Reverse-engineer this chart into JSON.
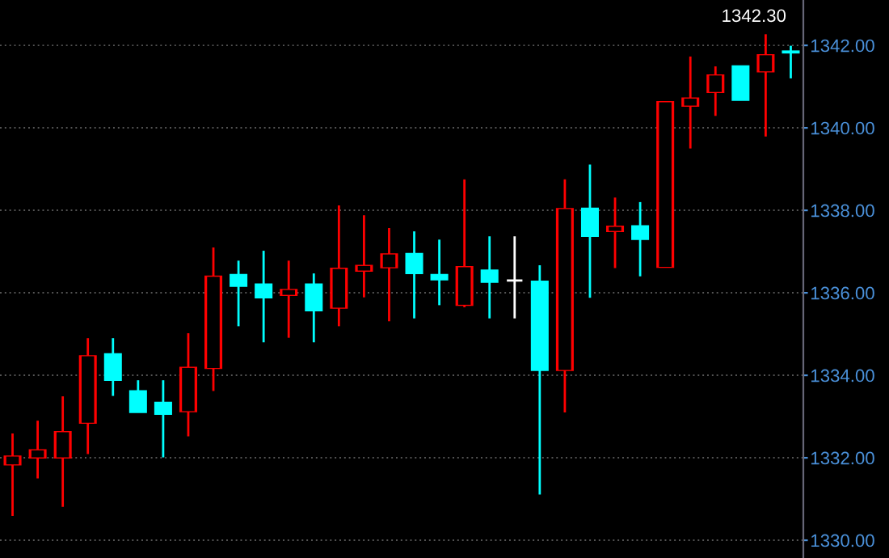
{
  "chart_data": {
    "type": "candlestick",
    "categories": [
      null,
      null,
      null,
      null,
      null,
      null,
      null,
      null,
      null,
      null,
      null,
      null,
      null,
      null,
      null,
      null,
      null,
      null,
      null,
      null,
      null,
      null,
      null,
      null,
      null,
      null,
      null,
      null,
      null,
      null,
      null,
      null
    ],
    "ohlc": [
      [
        1331.84,
        1332.59,
        1330.59,
        1332.03
      ],
      [
        1332.01,
        1332.9,
        1331.5,
        1332.18
      ],
      [
        1332.01,
        1333.49,
        1330.81,
        1332.62
      ],
      [
        1332.85,
        1334.9,
        1332.09,
        1334.46
      ],
      [
        1334.51,
        1334.9,
        1333.5,
        1333.89
      ],
      [
        1333.61,
        1333.88,
        1333.11,
        1333.11
      ],
      [
        1333.33,
        1333.88,
        1332.01,
        1333.07
      ],
      [
        1333.13,
        1335.02,
        1332.52,
        1334.18
      ],
      [
        1334.18,
        1337.1,
        1333.62,
        1336.39
      ],
      [
        1336.43,
        1336.78,
        1335.19,
        1336.17
      ],
      [
        1336.2,
        1337.02,
        1334.8,
        1335.89
      ],
      [
        1335.95,
        1336.78,
        1334.91,
        1336.07
      ],
      [
        1336.2,
        1336.47,
        1334.8,
        1335.58
      ],
      [
        1335.64,
        1338.12,
        1335.19,
        1336.58
      ],
      [
        1336.54,
        1337.88,
        1335.89,
        1336.65
      ],
      [
        1336.62,
        1337.57,
        1335.31,
        1336.93
      ],
      [
        1336.94,
        1337.49,
        1335.38,
        1336.48
      ],
      [
        1336.43,
        1337.29,
        1335.7,
        1336.33
      ],
      [
        1335.71,
        1338.75,
        1335.65,
        1336.62
      ],
      [
        1336.54,
        1337.37,
        1335.38,
        1336.27
      ],
      [
        1336.3,
        1337.37,
        1335.38,
        1336.3
      ],
      [
        1336.27,
        1336.67,
        1331.11,
        1334.13
      ],
      [
        1334.13,
        1338.75,
        1333.1,
        1338.03
      ],
      [
        1338.04,
        1339.11,
        1335.88,
        1337.38
      ],
      [
        1337.5,
        1338.31,
        1336.6,
        1337.6
      ],
      [
        1337.61,
        1338.2,
        1336.4,
        1337.31
      ],
      [
        1336.63,
        1340.62,
        1336.63,
        1340.62
      ],
      [
        1340.54,
        1341.73,
        1339.5,
        1340.71
      ],
      [
        1340.87,
        1341.49,
        1340.29,
        1341.27
      ],
      [
        1341.49,
        1341.49,
        1340.68,
        1340.68
      ],
      [
        1341.37,
        1342.27,
        1339.79,
        1341.76
      ],
      [
        1341.85,
        1341.99,
        1341.2,
        1341.83
      ]
    ],
    "colors": [
      "#ff0000",
      "#ff0000",
      "#ff0000",
      "#ff0000",
      "#00ffff",
      "#00ffff",
      "#00ffff",
      "#ff0000",
      "#ff0000",
      "#00ffff",
      "#00ffff",
      "#ff0000",
      "#00ffff",
      "#ff0000",
      "#ff0000",
      "#ff0000",
      "#00ffff",
      "#00ffff",
      "#ff0000",
      "#00ffff",
      "#ffffff",
      "#00ffff",
      "#ff0000",
      "#00ffff",
      "#ff0000",
      "#00ffff",
      "#ff0000",
      "#ff0000",
      "#ff0000",
      "#00ffff",
      "#ff0000",
      "#00ffff"
    ],
    "annotations": [
      "1342.30"
    ],
    "ylim": [
      1329.57,
      1343.1
    ],
    "yticks": [
      {
        "value": 1330,
        "label": "1330.00"
      },
      {
        "value": 1332,
        "label": "1332.00"
      },
      {
        "value": 1334,
        "label": "1334.00"
      },
      {
        "value": 1336,
        "label": "1336.00"
      },
      {
        "value": 1338,
        "label": "1338.00"
      },
      {
        "value": 1340,
        "label": "1340.00"
      },
      {
        "value": 1342,
        "label": "1342.00"
      }
    ],
    "grid": "y"
  }
}
